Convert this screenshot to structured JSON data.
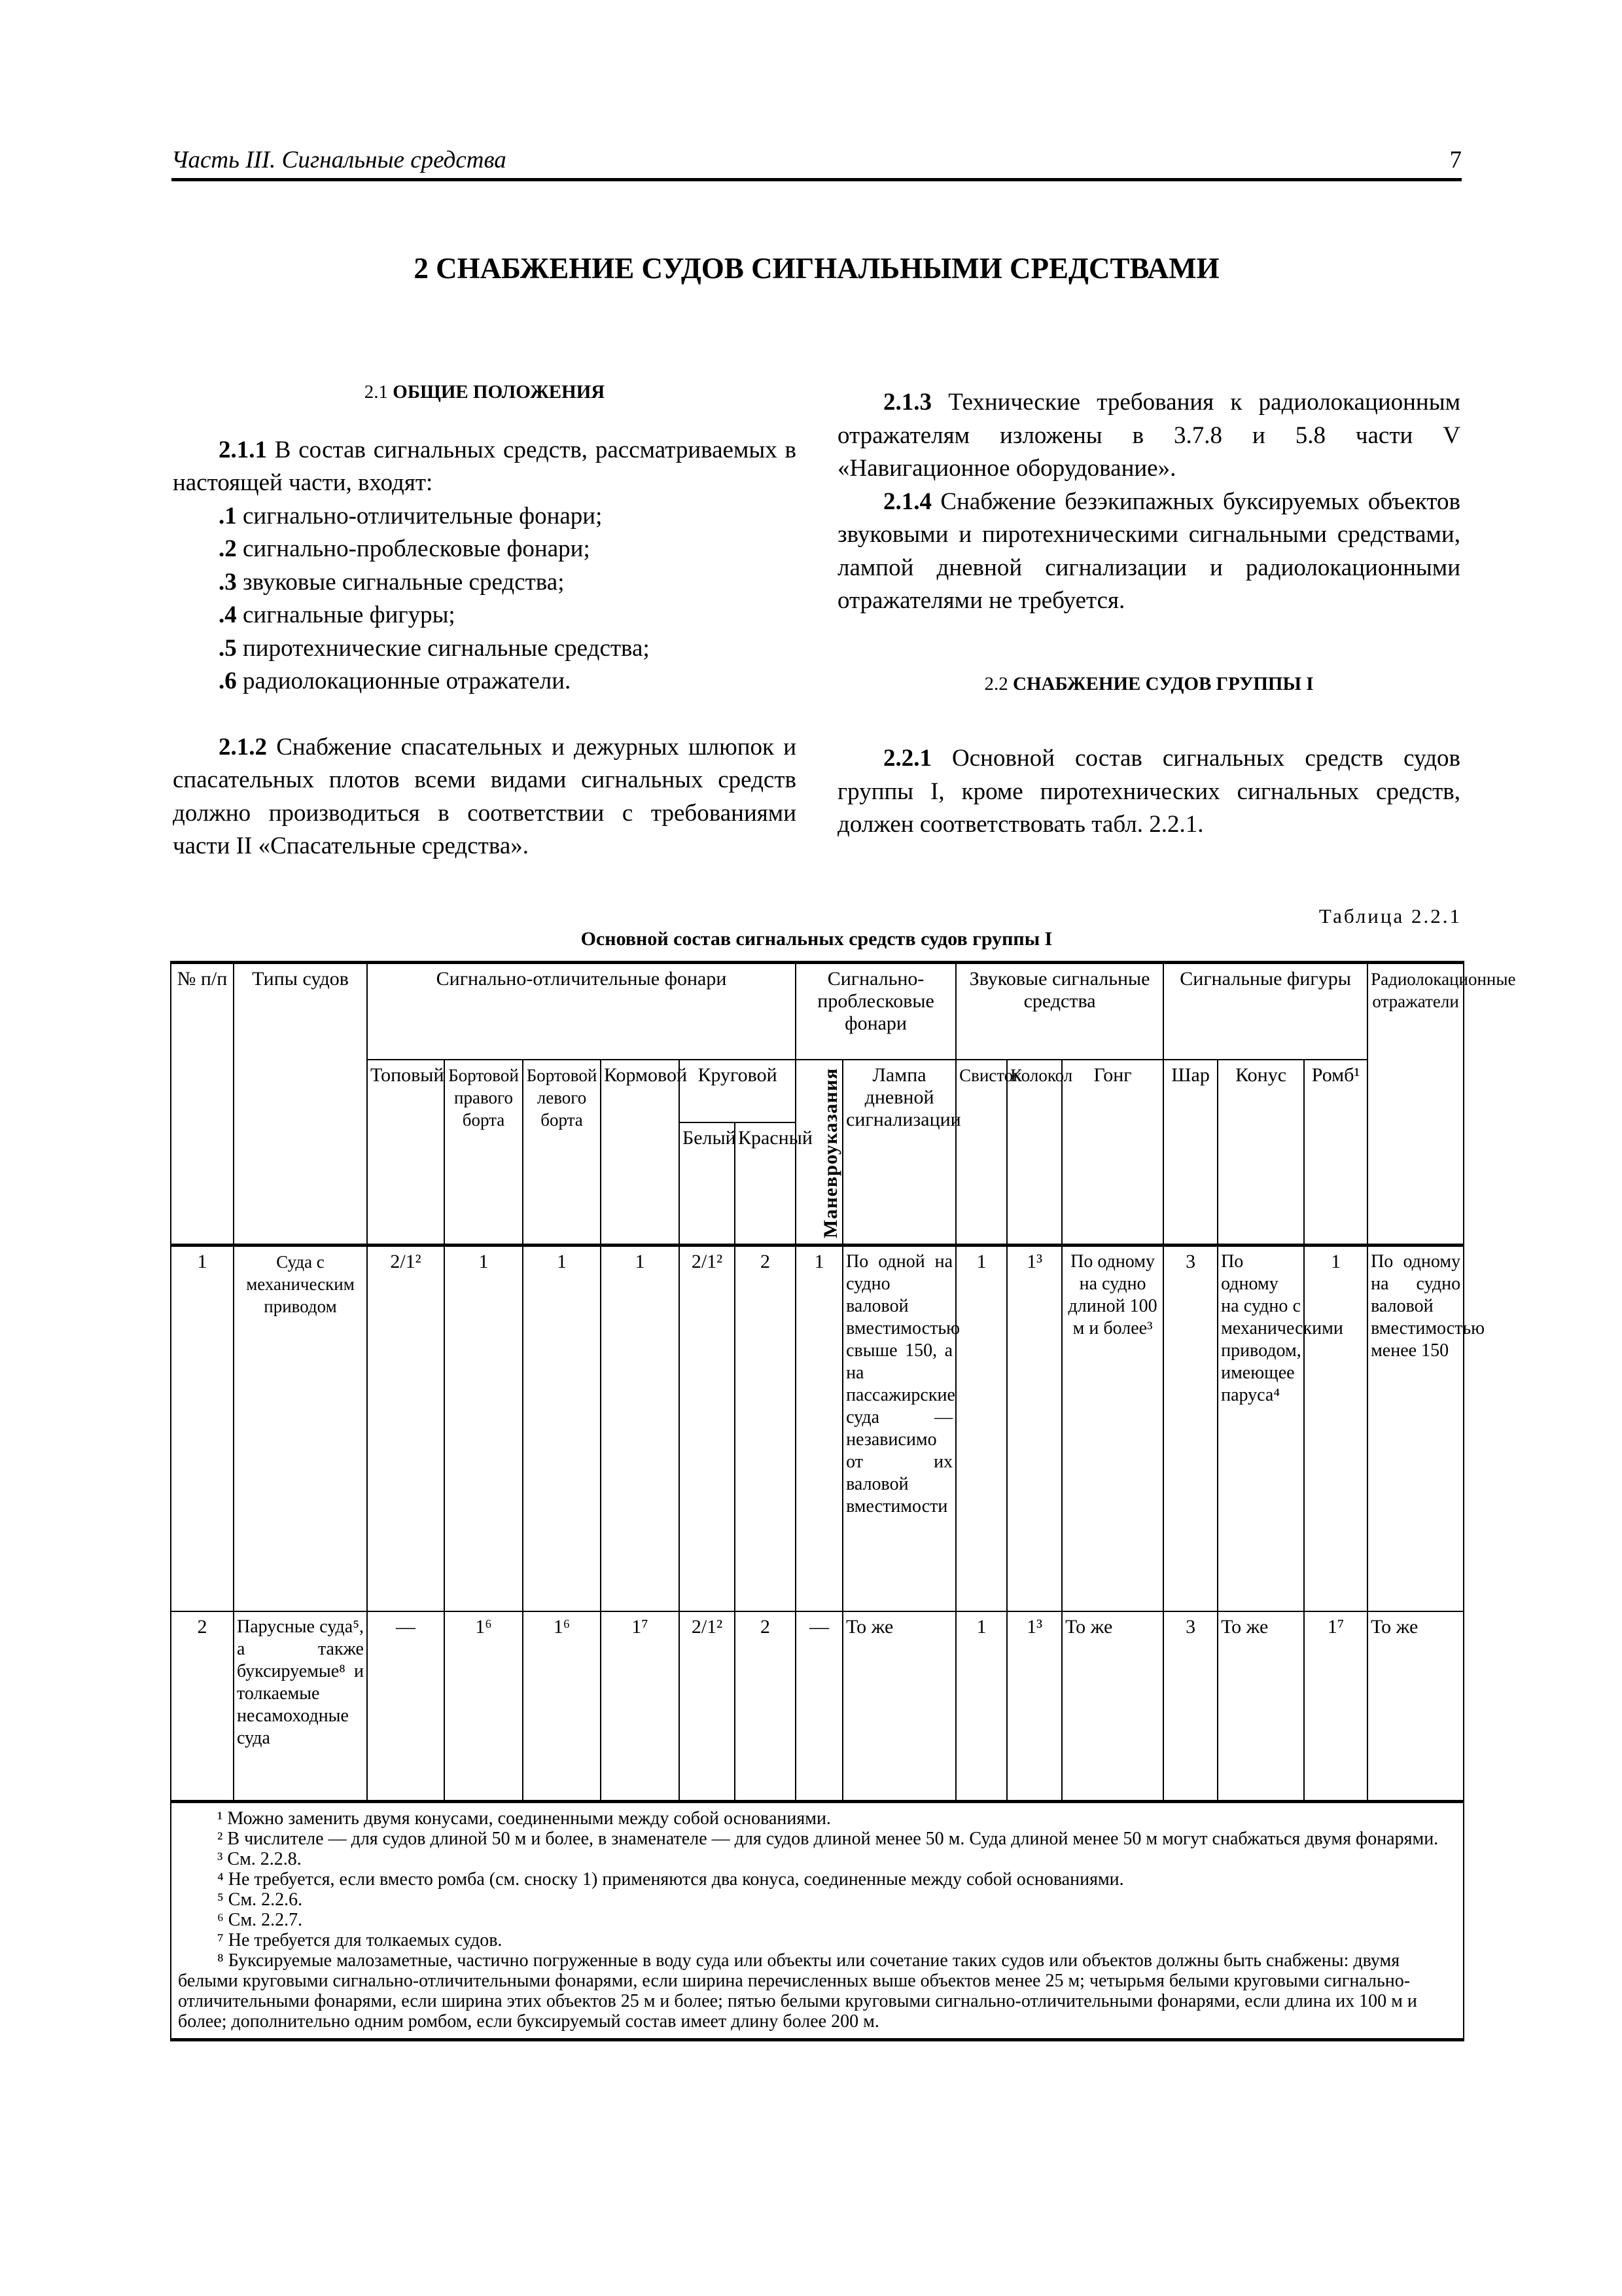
{
  "header": {
    "running_title": "Часть III. Сигнальные средства",
    "page_number": "7"
  },
  "chapter_title": "2 СНАБЖЕНИЕ СУДОВ СИГНАЛЬНЫМИ СРЕДСТВАМИ",
  "left": {
    "s21_num": "2.1",
    "s21_title": "ОБЩИЕ ПОЛОЖЕНИЯ",
    "p211_num": "2.1.1",
    "p211_text": " В состав сигнальных средств, рассматриваемых в настоящей части, входят:",
    "list": [
      {
        "num": ".1",
        "text": " сигнально-отличительные фонари;"
      },
      {
        "num": ".2",
        "text": " сигнально-проблесковые фонари;"
      },
      {
        "num": ".3",
        "text": " звуковые сигнальные средства;"
      },
      {
        "num": ".4",
        "text": " сигнальные фигуры;"
      },
      {
        "num": ".5",
        "text": " пиротехнические сигнальные средства;"
      },
      {
        "num": ".6",
        "text": " радиолокационные отражатели."
      }
    ],
    "p212_num": "2.1.2",
    "p212_text": " Снабжение спасательных и дежурных шлюпок и спасательных плотов всеми видами сигнальных средств должно производиться в соответствии с требованиями части II «Спасательные средства»."
  },
  "right": {
    "p213_num": "2.1.3",
    "p213_text": " Технические требования к радиолокационным отражателям изложены в 3.7.8 и 5.8 части V «Навигационное оборудование».",
    "p214_num": "2.1.4",
    "p214_text": " Снабжение безэкипажных буксируемых объектов звуковыми и пиротехническими сигнальными средствами, лампой дневной сигнализации и радиолокационными отражателями не требуется.",
    "s22_num": "2.2",
    "s22_title": "СНАБЖЕНИЕ СУДОВ ГРУППЫ I",
    "p221_num": "2.2.1",
    "p221_text": " Основной состав сигнальных средств судов группы I, кроме пиротехнических сигнальных средств, должен соответствовать табл. 2.2.1."
  },
  "table": {
    "number": "Таблица 2.2.1",
    "caption": "Основной состав сигнальных средств судов группы I",
    "head": {
      "no": "№ п/п",
      "types": "Типы судов",
      "side_lights": "Сигнально-отличительные фонари",
      "flash_lights": "Сигнально-проблесковые фонари",
      "sound": "Звуковые сигнальные средства",
      "shapes": "Сигнальные фигуры",
      "radar": "Радиолокационные отражатели",
      "mast": "Топовый",
      "starboard": "Бортовой правого борта",
      "port": "Бортовой левого борта",
      "stern": "Кормовой",
      "allround": "Круговой",
      "white": "Белый",
      "red": "Красный",
      "maneuver": "Маневроуказания",
      "lamp": "Лампа дневной сигнализации",
      "whistle": "Свисток",
      "bell": "Колокол",
      "gong": "Гонг",
      "ball": "Шар",
      "cone": "Конус",
      "diamond": "Ромб¹"
    },
    "rows": [
      {
        "no": "1",
        "type": "Суда с механическим приводом",
        "mast": "2/1²",
        "starboard": "1",
        "port": "1",
        "stern": "1",
        "white": "2/1²",
        "red": "2",
        "maneuver": "1",
        "lamp": "По одной на судно валовой вместимостью свыше 150, а на пассажирские суда — независимо от их валовой вместимости",
        "whistle": "1",
        "bell": "1³",
        "gong": "По одному на судно длиной 100 м и более³",
        "ball": "3",
        "cone": "По одному на судно с механическими приводом, имеющее паруса⁴",
        "diamond": "1",
        "radar": "По одному на судно валовой вместимостью менее 150"
      },
      {
        "no": "2",
        "type": "Парусные суда⁵, а также буксируемые⁸ и толкаемые несамоходные суда",
        "mast": "—",
        "starboard": "1⁶",
        "port": "1⁶",
        "stern": "1⁷",
        "white": "2/1²",
        "red": "2",
        "maneuver": "—",
        "lamp": "То же",
        "whistle": "1",
        "bell": "1³",
        "gong": "То же",
        "ball": "3",
        "cone": "То же",
        "diamond": "1⁷",
        "radar": "То же"
      }
    ],
    "footnotes": [
      "¹ Можно заменить двумя конусами, соединенными между собой основаниями.",
      "² В числителе — для судов длиной 50 м и более, в знаменателе — для судов длиной менее 50 м. Суда длиной менее 50 м могут снабжаться двумя фонарями.",
      "³ См. 2.2.8.",
      "⁴ Не требуется, если вместо ромба (см. сноску 1) применяются два конуса, соединенные между собой основаниями.",
      "⁵ См. 2.2.6.",
      "⁶ См. 2.2.7.",
      "⁷ Не требуется для толкаемых судов.",
      "⁸ Буксируемые малозаметные, частично погруженные в воду суда или объекты или сочетание таких судов или объектов должны быть снабжены: двумя белыми круговыми сигнально-отличительными фонарями, если ширина перечисленных выше объектов менее 25 м; четырьмя белыми круговыми сигнально-отличительными фонарями, если ширина этих объектов 25 м и более; пятью белыми круговыми сигнально-отличительными фонарями, если длина их 100 м и более; дополнительно одним ромбом, если буксируемый состав имеет длину более 200 м."
    ]
  }
}
